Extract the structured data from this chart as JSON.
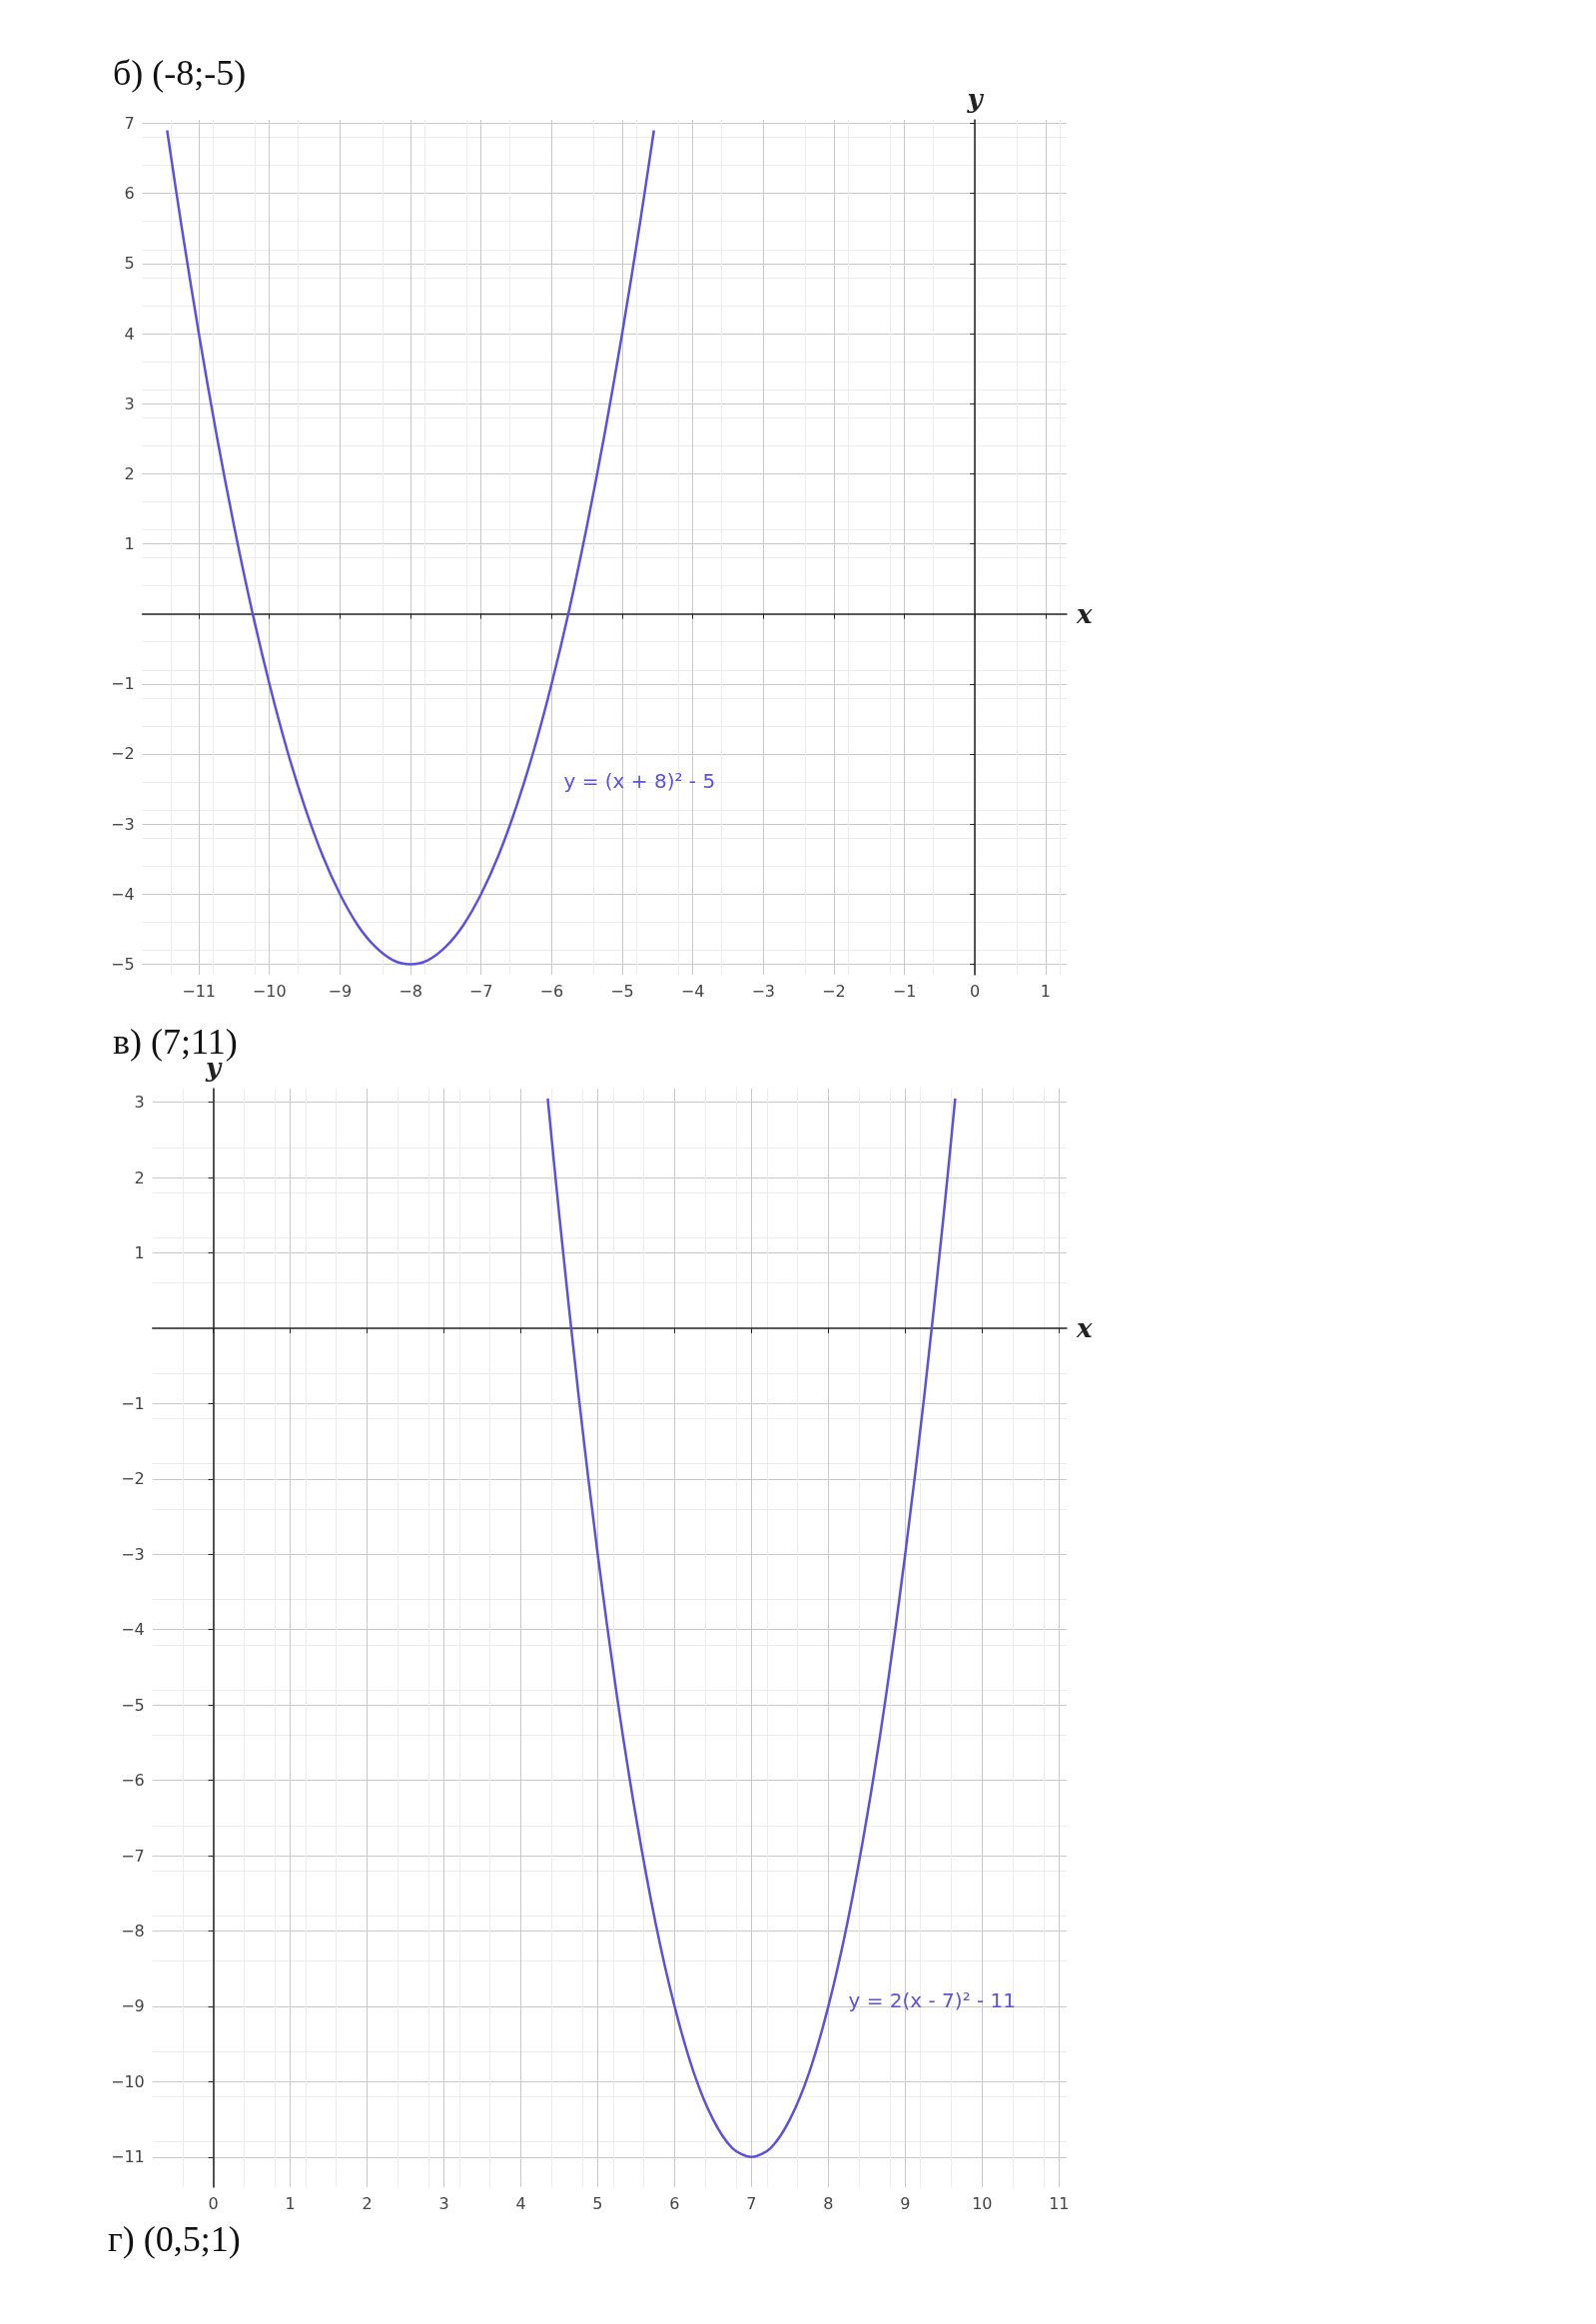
{
  "chart_data": [
    {
      "type": "line",
      "title": "б) (-8;-5)",
      "xlabel": "x",
      "ylabel": "y",
      "xlim": [
        -11.8,
        1.3
      ],
      "ylim": [
        -5.15,
        7.05
      ],
      "xticks": [
        -11,
        -10,
        -9,
        -8,
        -7,
        -6,
        -5,
        -4,
        -3,
        -2,
        -1,
        0,
        1
      ],
      "yticks": [
        -5,
        -4,
        -3,
        -2,
        -1,
        1,
        2,
        3,
        4,
        5,
        6,
        7
      ],
      "grid": true,
      "marker": "none",
      "line_style": "solid",
      "annotations": [
        "y = (x + 8)² - 5"
      ],
      "series": [
        {
          "color": "#5b50e0",
          "x": [
            -11.45,
            -11.25,
            -11,
            -10.75,
            -10.5,
            -10.25,
            -10,
            -9.75,
            -9.5,
            -9.25,
            -9,
            -8.75,
            -8.5,
            -8.25,
            -8,
            -7.75,
            -7.5,
            -7.25,
            -7,
            -6.75,
            -6.5,
            -6.25,
            -6,
            -5.75,
            -5.5,
            -5.25,
            -5,
            -4.75,
            -4.55
          ],
          "values": [
            6.9,
            5.56,
            4,
            2.56,
            1.25,
            0.06,
            -1,
            -1.94,
            -2.75,
            -3.44,
            -4,
            -4.44,
            -4.75,
            -4.94,
            -5,
            -4.94,
            -4.75,
            -4.44,
            -4,
            -3.44,
            -2.75,
            -1.94,
            -1,
            0.06,
            1.25,
            2.56,
            4,
            5.56,
            6.9
          ]
        }
      ]
    },
    {
      "type": "line",
      "title": "в) (7;11)",
      "xlabel": "x",
      "ylabel": "y",
      "xlim": [
        -0.79,
        11.1
      ],
      "ylim": [
        -11.4,
        3.18
      ],
      "xticks": [
        0,
        1,
        2,
        3,
        4,
        5,
        6,
        7,
        8,
        9,
        10,
        11
      ],
      "yticks": [
        -11,
        -10,
        -9,
        -8,
        -7,
        -6,
        -5,
        -4,
        -3,
        -2,
        -1,
        1,
        2,
        3
      ],
      "grid": true,
      "marker": "none",
      "line_style": "solid",
      "annotations": [
        "y = 2(x - 7)² - 11",
        "г) (0,5;1)"
      ],
      "series": [
        {
          "color": "#5b50e0",
          "x": [
            4.35,
            4.5,
            4.75,
            5,
            5.25,
            5.5,
            5.75,
            6,
            6.25,
            6.5,
            6.75,
            7,
            7.25,
            7.5,
            7.75,
            8,
            8.25,
            8.5,
            8.75,
            9,
            9.25,
            9.5,
            9.65
          ],
          "values": [
            3.05,
            1.5,
            -0.88,
            -3,
            -4.88,
            -6.5,
            -7.88,
            -9,
            -9.88,
            -10.5,
            -10.88,
            -11,
            -10.88,
            -10.5,
            -9.88,
            -9,
            -7.88,
            -6.5,
            -4.88,
            -3,
            -0.88,
            1.5,
            3.05
          ]
        }
      ]
    }
  ]
}
